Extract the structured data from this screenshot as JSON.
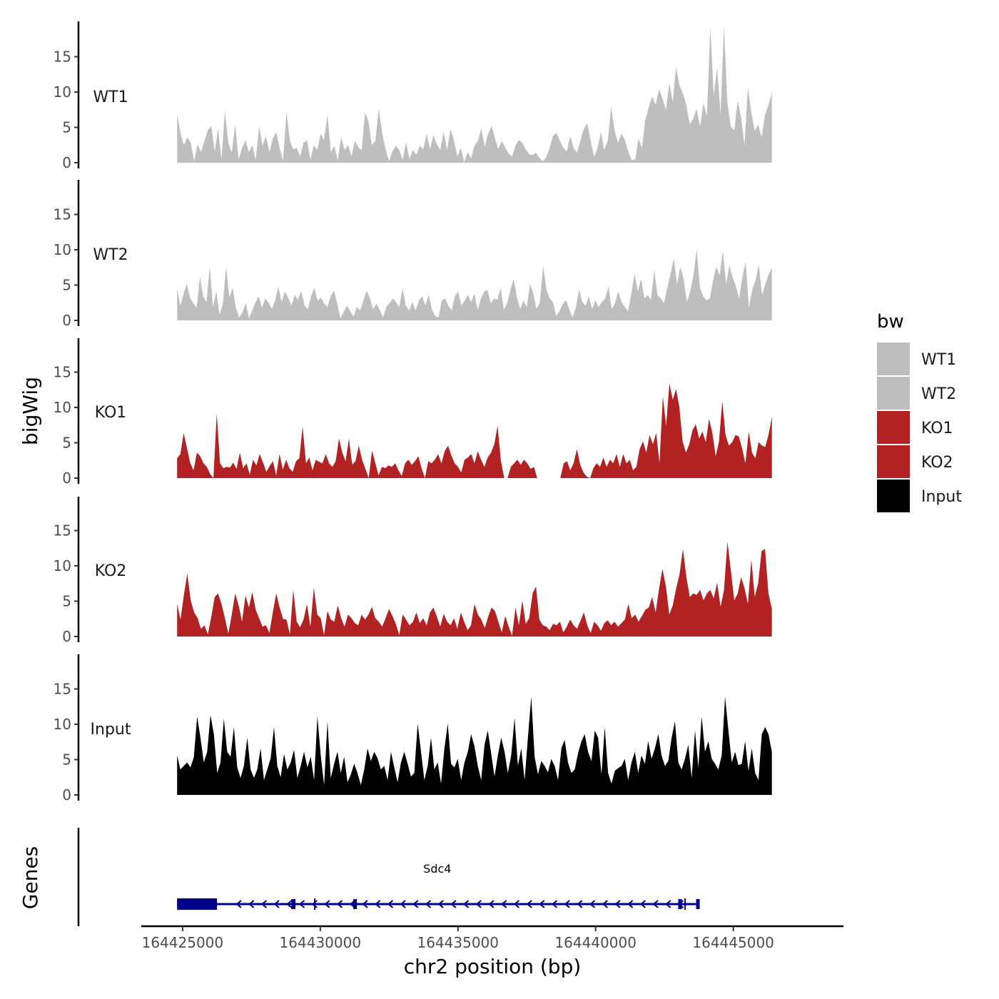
{
  "chart_data": {
    "type": "area",
    "ylabel": "bigWig",
    "xlabel": "chr2 position (bp)",
    "genes_label": "Genes",
    "xlim": [
      164423500,
      164449000
    ],
    "x_start": 164424800,
    "x_end": 164446400,
    "x_ticks": [
      164425000,
      164430000,
      164435000,
      164440000,
      164445000
    ],
    "x_tick_labels": [
      "164425000",
      "164430000",
      "164435000",
      "164440000",
      "164445000"
    ],
    "ylim": [
      0,
      20
    ],
    "y_ticks": [
      0,
      5,
      10,
      15
    ],
    "y_tick_labels": [
      "0",
      "5",
      "10",
      "15"
    ],
    "legend": {
      "title": "bw",
      "entries": [
        {
          "label": "WT1",
          "color": "#bebebe"
        },
        {
          "label": "WT2",
          "color": "#bebebe"
        },
        {
          "label": "KO1",
          "color": "#b22222"
        },
        {
          "label": "KO2",
          "color": "#b22222"
        },
        {
          "label": "Input",
          "color": "#000000"
        }
      ]
    },
    "series": [
      {
        "name": "WT1",
        "color": "#bebebe",
        "values": [
          6.8,
          4.2,
          2.5,
          3.6,
          2.8,
          0.2,
          2.6,
          1.5,
          3.1,
          4.6,
          5.2,
          1.6,
          4.8,
          0.5,
          7.3,
          2.8,
          1.4,
          5.4,
          0.5,
          2.1,
          3.2,
          1.5,
          2.5,
          0.4,
          5.1,
          2.4,
          3.8,
          1.5,
          3.4,
          4.3,
          2.1,
          0.3,
          7.2,
          3.1,
          1.9,
          2.1,
          0.9,
          2.8,
          3.2,
          0.4,
          2.5,
          1.8,
          4.1,
          3.2,
          6.8,
          1.5,
          2.4,
          0.3,
          3.6,
          1.8,
          2.5,
          0.9,
          3.1,
          2.2,
          1.8,
          7.1,
          5.8,
          2.5,
          3.1,
          7.6,
          4.2,
          1.9,
          0.2,
          1.6,
          2.4,
          1.8,
          0.4,
          2.9,
          0.5,
          1.8,
          1.1,
          2.4,
          1.9,
          4.1,
          1.9,
          3.9,
          2.6,
          1.8,
          4.4,
          1.8,
          4.8,
          3.1,
          0.9,
          2.1,
          0.1,
          1.5,
          0.6,
          2.4,
          3.1,
          4.8,
          2.3,
          4.1,
          5.2,
          3.4,
          1.9,
          3.1,
          2.1,
          1.3,
          0.9,
          2.4,
          3.2,
          2.8,
          1.9,
          1.2,
          1.1,
          1.4,
          0.7,
          0.2,
          0.8,
          2.1,
          3.8,
          4.2,
          3.1,
          2.1,
          1.6,
          3.8,
          2.1,
          1.4,
          3.1,
          4.8,
          5.6,
          3.1,
          0.8,
          2.1,
          4.3,
          1.8,
          3.1,
          7.9,
          4.6,
          2.8,
          4.1,
          3.2,
          1.6,
          0.3,
          0.5,
          3.4,
          2.1,
          6.1,
          7.8,
          9.4,
          8.2,
          10.4,
          9.1,
          7.4,
          11.3,
          8.6,
          13.6,
          10.9,
          9.8,
          8.1,
          5.4,
          6.2,
          7.6,
          5.1,
          8.4,
          6.6,
          19.2,
          9.6,
          13.4,
          6.9,
          19.4,
          8.4,
          5.1,
          4.6,
          8.8,
          6.4,
          2.5,
          10.6,
          7.1,
          4.5,
          5.4,
          3.6,
          6.8,
          8.1,
          9.9
        ]
      },
      {
        "name": "WT2",
        "color": "#bebebe",
        "values": [
          4.5,
          2.1,
          3.8,
          5.2,
          3.1,
          2.4,
          1.8,
          6.2,
          3.4,
          2.6,
          7.6,
          1.9,
          4.1,
          0.8,
          2.4,
          7.6,
          3.2,
          4.6,
          1.8,
          0.4,
          1.1,
          2.5,
          0.3,
          1.4,
          2.6,
          3.4,
          1.8,
          3.1,
          2.5,
          1.6,
          2.8,
          4.8,
          2.6,
          4.1,
          3.2,
          2.1,
          3.6,
          2.9,
          4.2,
          2.1,
          1.6,
          3.4,
          4.6,
          2.8,
          3.2,
          2.4,
          1.9,
          3.4,
          4.2,
          2.4,
          0.3,
          1.2,
          2.1,
          1.3,
          0.5,
          1.9,
          1.4,
          2.8,
          4.2,
          3.1,
          1.6,
          2.4,
          1.5,
          0.4,
          1.9,
          2.4,
          3.1,
          2.6,
          1.9,
          4.6,
          2.1,
          1.4,
          2.6,
          1.4,
          2.8,
          3.4,
          2.1,
          3.6,
          1.5,
          0.6,
          0.4,
          2.8,
          3.1,
          2.1,
          1.4,
          3.4,
          4.1,
          2.1,
          2.8,
          3.6,
          2.6,
          3.8,
          1.5,
          3.1,
          4.1,
          4.3,
          2.4,
          3.1,
          2.9,
          4.6,
          1.5,
          2.4,
          4.3,
          5.9,
          3.2,
          1.6,
          2.8,
          1.9,
          5.2,
          3.8,
          1.6,
          2.5,
          7.8,
          4.4,
          3.1,
          2.6,
          0.6,
          1.3,
          2.3,
          2.9,
          1.6,
          0.4,
          1.8,
          4.4,
          2.6,
          2.1,
          3.4,
          1.6,
          2.8,
          1.9,
          2.6,
          3.1,
          4.8,
          1.6,
          2.4,
          4.1,
          2.6,
          1.9,
          1.3,
          3.8,
          6.6,
          4.1,
          5.9,
          3.1,
          3.6,
          2.9,
          7.1,
          3.6,
          3.1,
          2.4,
          4.6,
          6.6,
          8.7,
          5.1,
          7.6,
          5.9,
          2.6,
          4.1,
          6.4,
          10.1,
          4.6,
          3.4,
          2.8,
          3.1,
          5.6,
          7.6,
          6.4,
          9.8,
          5.1,
          7.8,
          6.1,
          4.8,
          3.1,
          6.2,
          8.3,
          1.8,
          4.4,
          5.6,
          7.9,
          3.6,
          5.1,
          6.5,
          7.5
        ]
      },
      {
        "name": "KO1",
        "color": "#b22222",
        "values": [
          2.8,
          3.4,
          6.4,
          4.2,
          2.1,
          1.1,
          3.6,
          3.1,
          2.1,
          1.6,
          0.6,
          0.0,
          9.1,
          2.1,
          1.4,
          1.6,
          1.5,
          2.2,
          1.3,
          3.6,
          1.4,
          2.1,
          0.5,
          2.6,
          1.8,
          3.4,
          2.2,
          0.9,
          1.7,
          2.4,
          0.4,
          3.4,
          1.2,
          2.6,
          1.4,
          0.9,
          2.4,
          2.8,
          7.3,
          2.1,
          2.9,
          1.1,
          2.6,
          2.3,
          2.1,
          3.4,
          2.1,
          1.6,
          2.4,
          5.6,
          3.6,
          2.4,
          5.6,
          1.9,
          2.4,
          4.6,
          2.6,
          1.3,
          0.0,
          3.9,
          2.1,
          0.4,
          1.6,
          1.4,
          1.8,
          1.6,
          2.1,
          1.1,
          0.3,
          2.1,
          2.6,
          1.9,
          2.4,
          3.1,
          1.4,
          0.0,
          2.4,
          2.1,
          2.6,
          3.4,
          2.1,
          3.8,
          4.6,
          3.2,
          2.1,
          1.6,
          0.8,
          2.6,
          2.9,
          3.4,
          2.1,
          3.8,
          2.6,
          1.6,
          2.9,
          3.6,
          4.8,
          7.4,
          2.4,
          0.0,
          0.0,
          1.6,
          2.1,
          2.6,
          1.9,
          2.6,
          2.1,
          1.3,
          1.6,
          0.0,
          0.0,
          0.0,
          0.0,
          0.0,
          0.0,
          0.0,
          0.0,
          2.1,
          2.4,
          1.1,
          2.1,
          4.1,
          1.9,
          0.8,
          0.2,
          0.0,
          1.4,
          2.1,
          1.6,
          2.9,
          1.6,
          2.6,
          2.1,
          3.4,
          1.6,
          3.4,
          2.1,
          2.6,
          1.1,
          1.6,
          4.1,
          5.2,
          3.6,
          6.1,
          4.8,
          6.4,
          2.1,
          11.6,
          7.4,
          13.4,
          11.1,
          12.6,
          10.1,
          5.2,
          3.6,
          4.8,
          6.8,
          7.6,
          5.6,
          6.6,
          5.1,
          8.4,
          6.4,
          3.1,
          5.2,
          10.9,
          6.1,
          4.6,
          5.1,
          6.1,
          5.9,
          4.2,
          2.1,
          6.6,
          3.6,
          2.8,
          5.1,
          4.6,
          4.4,
          6.1,
          8.7
        ]
      },
      {
        "name": "KO2",
        "color": "#b22222",
        "values": [
          4.6,
          2.4,
          5.9,
          8.9,
          5.1,
          3.4,
          2.6,
          1.1,
          1.6,
          0.3,
          2.8,
          5.6,
          6.1,
          4.6,
          2.6,
          0.4,
          3.1,
          6.1,
          4.4,
          2.1,
          5.8,
          4.1,
          6.3,
          3.8,
          2.6,
          1.4,
          1.6,
          0.5,
          3.4,
          6.1,
          4.1,
          2.5,
          2.4,
          0.3,
          6.6,
          2.1,
          1.3,
          2.4,
          4.6,
          1.4,
          6.9,
          3.1,
          2.6,
          0.2,
          3.6,
          2.4,
          2.1,
          4.4,
          2.6,
          1.4,
          3.1,
          2.6,
          1.9,
          1.6,
          3.1,
          2.4,
          3.1,
          4.2,
          2.6,
          2.1,
          1.4,
          2.6,
          3.9,
          2.9,
          1.8,
          0.2,
          3.1,
          2.4,
          1.6,
          2.1,
          3.4,
          1.9,
          2.6,
          1.6,
          3.4,
          4.1,
          2.8,
          1.4,
          3.2,
          2.1,
          1.6,
          2.6,
          1.1,
          3.4,
          2.1,
          0.9,
          1.6,
          4.6,
          3.1,
          2.4,
          1.2,
          2.8,
          4.1,
          3.6,
          2.1,
          0.6,
          2.9,
          1.4,
          0.1,
          4.1,
          1.6,
          5.1,
          1.8,
          2.6,
          6.1,
          7.1,
          2.4,
          1.6,
          1.4,
          0.9,
          1.8,
          1.6,
          2.1,
          0.6,
          1.4,
          2.4,
          1.6,
          1.1,
          2.2,
          3.4,
          1.6,
          0.5,
          2.1,
          1.6,
          0.8,
          1.9,
          2.3,
          1.6,
          2.1,
          1.4,
          1.9,
          2.4,
          4.6,
          2.6,
          3.1,
          2.1,
          2.9,
          3.8,
          4.1,
          5.6,
          3.4,
          6.8,
          9.6,
          7.1,
          3.1,
          4.4,
          6.8,
          8.8,
          12.4,
          8.4,
          5.6,
          6.1,
          5.9,
          6.6,
          5.1,
          6.1,
          6.6,
          5.4,
          7.6,
          4.2,
          6.6,
          13.4,
          9.4,
          5.1,
          6.1,
          8.4,
          6.9,
          4.6,
          10.9,
          5.6,
          7.6,
          12.1,
          12.4,
          6.1,
          3.9
        ]
      },
      {
        "name": "Input",
        "color": "#000000",
        "values": [
          5.6,
          3.6,
          4.1,
          4.6,
          3.9,
          5.3,
          11.1,
          8.1,
          4.6,
          6.1,
          11.3,
          8.6,
          3.1,
          4.6,
          10.8,
          6.1,
          5.4,
          9.6,
          3.9,
          2.4,
          4.1,
          8.1,
          3.6,
          2.4,
          3.6,
          6.6,
          2.1,
          3.6,
          5.2,
          9.6,
          4.1,
          2.5,
          5.8,
          3.6,
          4.6,
          6.4,
          2.4,
          4.1,
          6.1,
          3.9,
          5.4,
          2.1,
          11.1,
          5.6,
          1.4,
          10.4,
          2.4,
          4.4,
          6.1,
          3.1,
          5.4,
          1.8,
          2.9,
          4.4,
          3.1,
          1.4,
          3.6,
          6.6,
          4.8,
          6.1,
          5.2,
          3.6,
          4.1,
          2.1,
          6.1,
          3.9,
          1.8,
          4.6,
          6.1,
          4.4,
          2.6,
          3.1,
          10.1,
          6.1,
          2.1,
          4.1,
          8.1,
          3.6,
          4.6,
          1.6,
          6.6,
          10.1,
          4.4,
          3.9,
          5.1,
          2.1,
          4.6,
          6.1,
          8.6,
          6.9,
          4.1,
          2.1,
          7.1,
          9.1,
          5.9,
          2.6,
          5.6,
          8.1,
          6.1,
          3.1,
          5.6,
          10.9,
          4.1,
          6.6,
          2.1,
          8.1,
          13.9,
          5.4,
          2.9,
          4.8,
          4.1,
          3.2,
          5.1,
          4.1,
          2.1,
          6.6,
          7.8,
          4.6,
          3.1,
          3.6,
          5.9,
          7.6,
          8.6,
          6.1,
          4.8,
          9.1,
          8.1,
          2.9,
          9.6,
          3.1,
          1.6,
          3.4,
          3.8,
          4.1,
          5.1,
          2.1,
          4.6,
          6.1,
          3.1,
          5.6,
          4.4,
          7.6,
          5.1,
          6.6,
          8.6,
          5.6,
          4.1,
          4.8,
          8.1,
          10.4,
          4.6,
          3.6,
          5.1,
          7.1,
          2.4,
          9.1,
          3.9,
          11.1,
          6.1,
          7.6,
          5.1,
          4.4,
          3.6,
          5.6,
          13.9,
          9.1,
          4.6,
          6.1,
          4.2,
          4.4,
          7.6,
          3.4,
          6.6,
          3.1,
          2.1,
          8.6,
          9.6,
          8.6,
          6.1
        ]
      }
    ],
    "genes": [
      {
        "name": "Sdc4",
        "strand": "-",
        "start": 164424800,
        "end": 164443700,
        "exons": [
          [
            164424800,
            164426250
          ],
          [
            164428950,
            164429100
          ],
          [
            164431200,
            164431300
          ],
          [
            164443000,
            164443050
          ],
          [
            164443650,
            164443700
          ]
        ],
        "marks": [
          164429800,
          164443250
        ]
      }
    ]
  }
}
